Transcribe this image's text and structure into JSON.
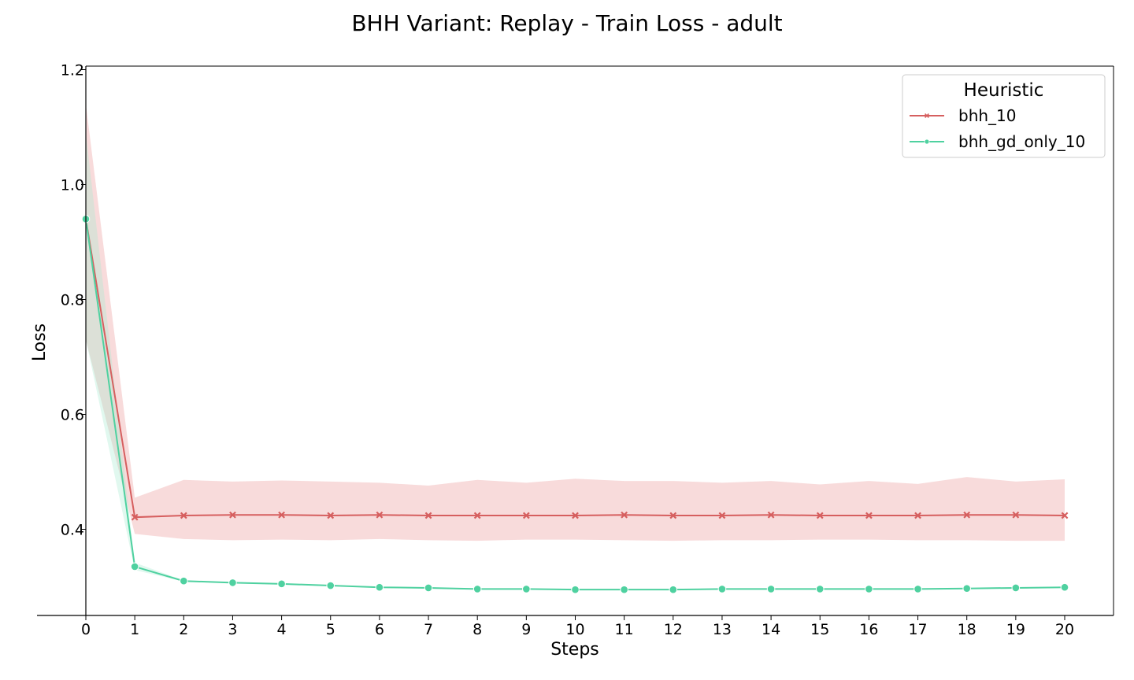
{
  "chart_data": {
    "type": "line",
    "title": "BHH Variant: Replay - Train Loss - adult",
    "xlabel": "Steps",
    "ylabel": "Loss",
    "x": [
      0,
      1,
      2,
      3,
      4,
      5,
      6,
      7,
      8,
      9,
      10,
      11,
      12,
      13,
      14,
      15,
      16,
      17,
      18,
      19,
      20
    ],
    "x_ticks": [
      0,
      1,
      2,
      3,
      4,
      5,
      6,
      7,
      8,
      9,
      10,
      11,
      12,
      13,
      14,
      15,
      16,
      17,
      18,
      19,
      20
    ],
    "y_ticks": [
      0.4,
      0.6,
      0.8,
      1.0,
      1.2
    ],
    "xlim": [
      -0.5,
      20.5
    ],
    "ylim": [
      0.285,
      1.205
    ],
    "grid": false,
    "legend": {
      "title": "Heuristic",
      "placement": "top-right"
    },
    "series": [
      {
        "name": "bhh_10",
        "color": "#d65f5f",
        "marker": "x",
        "values": [
          0.94,
          0.421,
          0.424,
          0.425,
          0.425,
          0.424,
          0.425,
          0.424,
          0.424,
          0.424,
          0.424,
          0.425,
          0.424,
          0.424,
          0.425,
          0.424,
          0.424,
          0.424,
          0.425,
          0.425,
          0.424
        ],
        "upper": [
          1.14,
          0.455,
          0.486,
          0.483,
          0.485,
          0.483,
          0.481,
          0.476,
          0.486,
          0.481,
          0.488,
          0.484,
          0.484,
          0.481,
          0.484,
          0.478,
          0.484,
          0.479,
          0.491,
          0.483,
          0.487
        ],
        "lower": [
          0.73,
          0.392,
          0.383,
          0.381,
          0.382,
          0.381,
          0.383,
          0.381,
          0.38,
          0.382,
          0.382,
          0.381,
          0.38,
          0.381,
          0.381,
          0.382,
          0.382,
          0.381,
          0.381,
          0.38,
          0.38
        ]
      },
      {
        "name": "bhh_gd_only_10",
        "color": "#4fd1a0",
        "marker": "o",
        "values": [
          0.94,
          0.335,
          0.31,
          0.307,
          0.305,
          0.302,
          0.299,
          0.298,
          0.296,
          0.296,
          0.295,
          0.295,
          0.295,
          0.296,
          0.296,
          0.296,
          0.296,
          0.296,
          0.297,
          0.298,
          0.299
        ],
        "upper": [
          1.09,
          0.342,
          0.311,
          0.308,
          0.306,
          0.303,
          0.3,
          0.299,
          0.297,
          0.297,
          0.296,
          0.296,
          0.296,
          0.297,
          0.297,
          0.297,
          0.297,
          0.297,
          0.298,
          0.299,
          0.3
        ],
        "lower": [
          0.73,
          0.329,
          0.309,
          0.306,
          0.304,
          0.301,
          0.298,
          0.297,
          0.295,
          0.295,
          0.294,
          0.294,
          0.294,
          0.295,
          0.295,
          0.295,
          0.295,
          0.295,
          0.296,
          0.297,
          0.298
        ]
      }
    ]
  }
}
